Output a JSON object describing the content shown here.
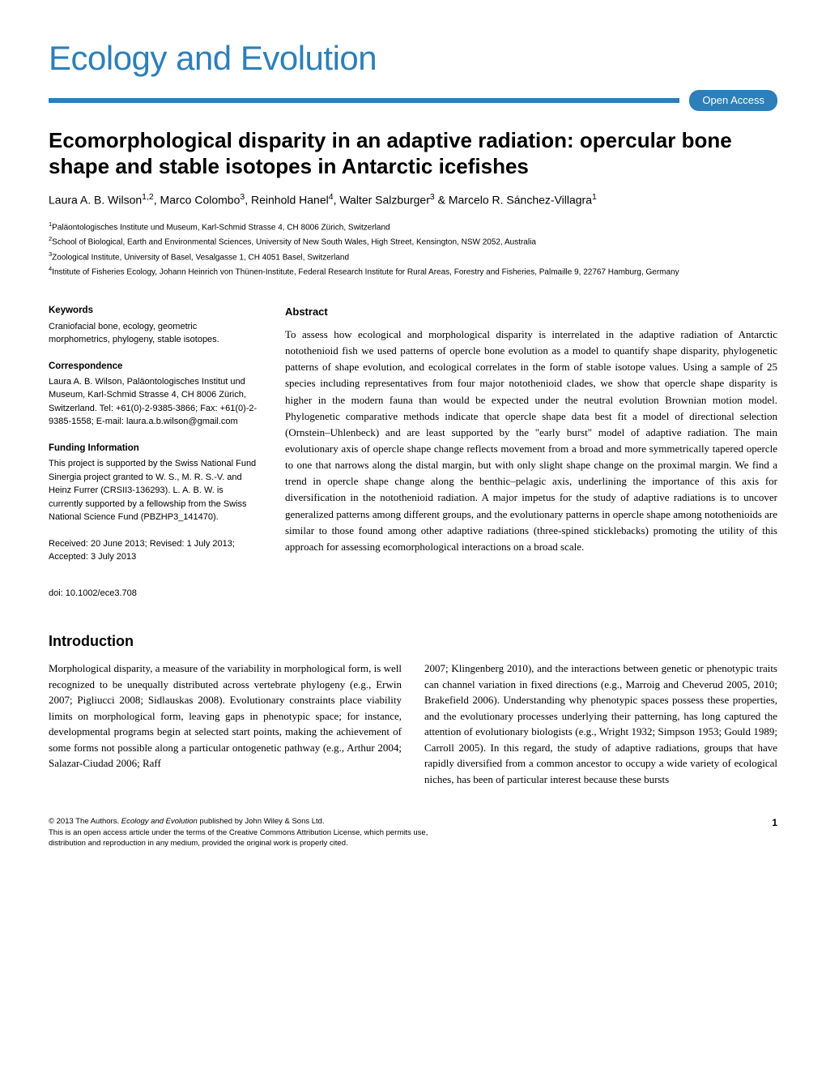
{
  "journal": {
    "name": "Ecology and Evolution",
    "brand_color": "#2c7fb8",
    "open_access_label": "Open Access"
  },
  "article": {
    "title": "Ecomorphological disparity in an adaptive radiation: opercular bone shape and stable isotopes in Antarctic icefishes",
    "authors_html": "Laura A. B. Wilson<sup>1,2</sup>, Marco Colombo<sup>3</sup>, Reinhold Hanel<sup>4</sup>, Walter Salzburger<sup>3</sup> & Marcelo R. Sánchez-Villagra<sup>1</sup>",
    "affiliations": [
      "<sup>1</sup>Paläontologisches Institute und Museum, Karl-Schmid Strasse 4, CH 8006 Zürich, Switzerland",
      "<sup>2</sup>School of Biological, Earth and Environmental Sciences, University of New South Wales, High Street, Kensington, NSW 2052, Australia",
      "<sup>3</sup>Zoological Institute, University of Basel, Vesalgasse 1, CH 4051 Basel, Switzerland",
      "<sup>4</sup>Institute of Fisheries Ecology, Johann Heinrich von Thünen-Institute, Federal Research Institute for Rural Areas, Forestry and Fisheries, Palmaille 9, 22767 Hamburg, Germany"
    ]
  },
  "sidebar": {
    "keywords": {
      "header": "Keywords",
      "text": "Craniofacial bone, ecology, geometric morphometrics, phylogeny, stable isotopes."
    },
    "correspondence": {
      "header": "Correspondence",
      "text": "Laura A. B. Wilson, Paläontologisches Institut und Museum, Karl-Schmid Strasse 4, CH 8006 Zürich, Switzerland. Tel: +61(0)-2-9385-3866; Fax: +61(0)-2-9385-1558; E-mail: laura.a.b.wilson@gmail.com"
    },
    "funding": {
      "header": "Funding Information",
      "text": "This project is supported by the Swiss National Fund Sinergia project granted to W. S., M. R. S.-V. and Heinz Furrer (CRSII3-136293). L. A. B. W. is currently supported by a fellowship from the Swiss National Science Fund (PBZHP3_141470)."
    },
    "dates": "Received: 20 June 2013; Revised: 1 July 2013; Accepted: 3 July 2013",
    "doi": "doi: 10.1002/ece3.708"
  },
  "abstract": {
    "header": "Abstract",
    "text": "To assess how ecological and morphological disparity is interrelated in the adaptive radiation of Antarctic notothenioid fish we used patterns of opercle bone evolution as a model to quantify shape disparity, phylogenetic patterns of shape evolution, and ecological correlates in the form of stable isotope values. Using a sample of 25 species including representatives from four major notothenioid clades, we show that opercle shape disparity is higher in the modern fauna than would be expected under the neutral evolution Brownian motion model. Phylogenetic comparative methods indicate that opercle shape data best fit a model of directional selection (Ornstein–Uhlenbeck) and are least supported by the \"early burst\" model of adaptive radiation. The main evolutionary axis of opercle shape change reflects movement from a broad and more symmetrically tapered opercle to one that narrows along the distal margin, but with only slight shape change on the proximal margin. We find a trend in opercle shape change along the benthic–pelagic axis, underlining the importance of this axis for diversification in the notothenioid radiation. A major impetus for the study of adaptive radiations is to uncover generalized patterns among different groups, and the evolutionary patterns in opercle shape among notothenioids are similar to those found among other adaptive radiations (three-spined sticklebacks) promoting the utility of this approach for assessing ecomorphological interactions on a broad scale."
  },
  "introduction": {
    "header": "Introduction",
    "col1": "Morphological disparity, a measure of the variability in morphological form, is well recognized to be unequally distributed across vertebrate phylogeny (e.g., Erwin 2007; Pigliucci 2008; Sidlauskas 2008). Evolutionary constraints place viability limits on morphological form, leaving gaps in phenotypic space; for instance, developmental programs begin at selected start points, making the achievement of some forms not possible along a particular ontogenetic pathway (e.g., Arthur 2004; Salazar-Ciudad 2006; Raff",
    "col2": "2007; Klingenberg 2010), and the interactions between genetic or phenotypic traits can channel variation in fixed directions (e.g., Marroig and Cheverud 2005, 2010; Brakefield 2006). Understanding why phenotypic spaces possess these properties, and the evolutionary processes underlying their patterning, has long captured the attention of evolutionary biologists (e.g., Wright 1932; Simpson 1953; Gould 1989; Carroll 2005). In this regard, the study of adaptive radiations, groups that have rapidly diversified from a common ancestor to occupy a wide variety of ecological niches, has been of particular interest because these bursts"
  },
  "footer": {
    "copyright": "© 2013 The Authors. <i>Ecology and Evolution</i> published by John Wiley & Sons Ltd.",
    "license1": "This is an open access article under the terms of the Creative Commons Attribution License, which permits use,",
    "license2": "distribution and reproduction in any medium, provided the original work is properly cited.",
    "page_number": "1"
  }
}
